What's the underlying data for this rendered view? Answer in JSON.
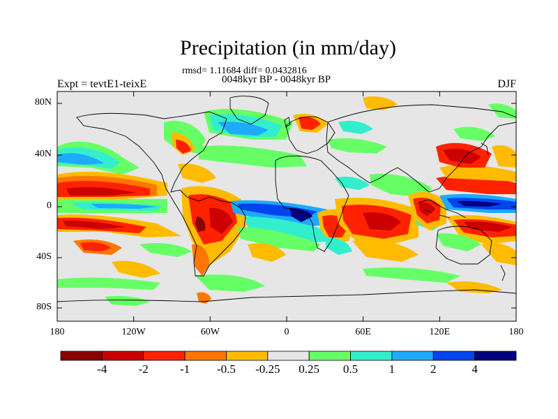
{
  "title": "Precipitation (in mm/day)",
  "stats_line": "rmsd= 1.11684 diff= 0.0432816",
  "period_line": "0048kyr BP - 0048kyr BP",
  "left_label": "Expt = tevtE1-teixE",
  "right_label": "DJF",
  "lat_labels": [
    "80N",
    "40N",
    "0",
    "40S",
    "80S"
  ],
  "lon_labels": [
    "180",
    "120W",
    "60W",
    "0",
    "60E",
    "120E",
    "180"
  ],
  "colorbar": {
    "colors": [
      "#8b0000",
      "#cc0000",
      "#ff2200",
      "#ff7700",
      "#ffbb00",
      "#e6e6e6",
      "#66ff66",
      "#33eecc",
      "#1eaaff",
      "#0044ee",
      "#000080"
    ],
    "labels": [
      "-4",
      "-2",
      "-1",
      "-0.5",
      "-0.25",
      "0.25",
      "0.5",
      "1",
      "2",
      "4"
    ]
  },
  "colors": {
    "background": "#e6e6e6",
    "coast": "#000000"
  }
}
